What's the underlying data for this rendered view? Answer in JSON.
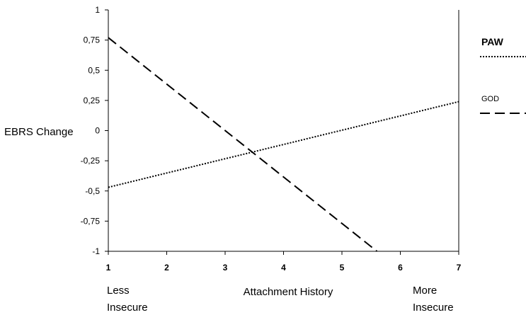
{
  "chart_data": {
    "type": "line",
    "xlabel": "Attachment History",
    "ylabel": "EBRS Change",
    "x_end_labels": {
      "left": [
        "Less",
        "Insecure"
      ],
      "right": [
        "More",
        "Insecure"
      ]
    },
    "xlim": [
      1,
      7
    ],
    "ylim": [
      -1,
      1
    ],
    "x_ticks": [
      "1",
      "2",
      "3",
      "4",
      "5",
      "6",
      "7"
    ],
    "y_ticks": [
      "1",
      "0,75",
      "0,5",
      "0,25",
      "0",
      "-0,25",
      "-0,5",
      "-0,75",
      "-1"
    ],
    "grid": false,
    "legend": "right",
    "series": [
      {
        "name": "PAW",
        "style": "dotted",
        "x": [
          1,
          7
        ],
        "y": [
          -0.47,
          0.24
        ]
      },
      {
        "name": "GOD",
        "style": "dashed",
        "x": [
          1,
          5.6
        ],
        "y": [
          0.77,
          -1.0
        ]
      }
    ]
  }
}
